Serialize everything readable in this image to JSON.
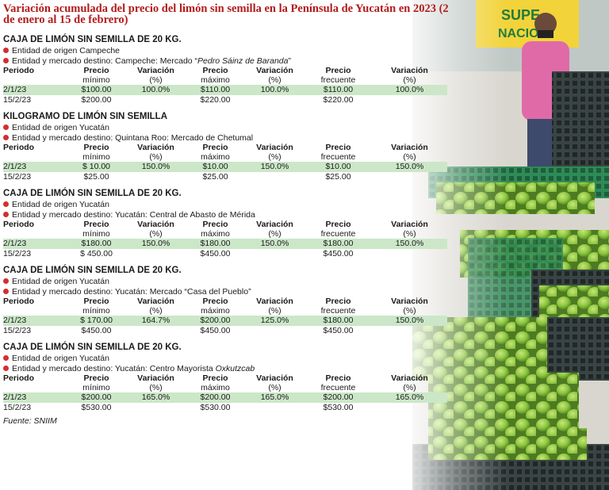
{
  "title": "Variación acumulada del precio del limón sin semilla en la Península de Yucatán en 2023 (2 de enero al 15 de febrero)",
  "headers": {
    "periodo": "Periodo",
    "precio": "Precio",
    "minimo": "mínimo",
    "variacion": "Variación",
    "pct": "(%)",
    "maximo": "máximo",
    "frecuente": "frecuente"
  },
  "sections": [
    {
      "title": "CAJA DE LIMÓN SIN SEMILLA DE 20 KG.",
      "origen": "Entidad de origen Campeche",
      "destino_prefix": "Entidad y mercado destino: Campeche: Mercado “",
      "destino_italic": "Pedro Sáinz de Baranda",
      "destino_suffix": "”",
      "rows": [
        {
          "periodo": "2/1/23",
          "min": "$100.00",
          "var_min": "100.0%",
          "max": "$110.00",
          "var_max": "100.0%",
          "frec": "$110.00",
          "var_frec": "100.0%"
        },
        {
          "periodo": "15/2/23",
          "min": "$200.00",
          "var_min": "",
          "max": "$220.00",
          "var_max": "",
          "frec": "$220.00",
          "var_frec": ""
        }
      ]
    },
    {
      "title": "KILOGRAMO DE LIMÓN SIN SEMILLA",
      "origen": "Entidad de origen Yucatán",
      "destino_prefix": "Entidad y mercado destino: Quintana Roo: Mercado de Chetumal",
      "destino_italic": "",
      "destino_suffix": "",
      "rows": [
        {
          "periodo": "2/1/23",
          "min": "$ 10.00",
          "var_min": "150.0%",
          "max": "$10.00",
          "var_max": "150.0%",
          "frec": "$10.00",
          "var_frec": "150.0%"
        },
        {
          "periodo": "15/2/23",
          "min": "$25.00",
          "var_min": "",
          "max": "$25.00",
          "var_max": "",
          "frec": "$25.00",
          "var_frec": ""
        }
      ]
    },
    {
      "title": "CAJA DE LIMÓN SIN SEMILLA DE 20 KG.",
      "origen": "Entidad de origen Yucatán",
      "destino_prefix": "Entidad y mercado destino: Yucatán: Central de Abasto de Mérida",
      "destino_italic": "",
      "destino_suffix": "",
      "rows": [
        {
          "periodo": "2/1/23",
          "min": "$180.00",
          "var_min": "150.0%",
          "max": "$180.00",
          "var_max": "150.0%",
          "frec": "$180.00",
          "var_frec": "150.0%"
        },
        {
          "periodo": "15/2/23",
          "min": "$ 450.00",
          "var_min": "",
          "max": "$450.00",
          "var_max": "",
          "frec": "$450.00",
          "var_frec": ""
        }
      ]
    },
    {
      "title": "CAJA DE LIMÓN SIN SEMILLA DE 20 KG.",
      "origen": "Entidad de origen Yucatán",
      "destino_prefix": "Entidad y mercado destino: Yucatán: Mercado “Casa del Pueblo”",
      "destino_italic": "",
      "destino_suffix": "",
      "rows": [
        {
          "periodo": "2/1/23",
          "min": "$ 170.00",
          "var_min": "164.7%",
          "max": "$200.00",
          "var_max": "125.0%",
          "frec": "$180.00",
          "var_frec": "150.0%"
        },
        {
          "periodo": "15/2/23",
          "min": "$450.00",
          "var_min": "",
          "max": "$450.00",
          "var_max": "",
          "frec": "$450.00",
          "var_frec": ""
        }
      ]
    },
    {
      "title": "CAJA DE LIMÓN SIN SEMILLA DE 20 KG.",
      "origen": "Entidad de origen Yucatán",
      "destino_prefix": "Entidad y mercado destino: Yucatán: Centro Mayorista ",
      "destino_italic": "Oxkutzcab",
      "destino_suffix": "",
      "rows": [
        {
          "periodo": "2/1/23",
          "min": "$200.00",
          "var_min": "165.0%",
          "max": "$200.00",
          "var_max": "165.0%",
          "frec": "$200.00",
          "var_frec": "165.0%"
        },
        {
          "periodo": "15/2/23",
          "min": "$530.00",
          "var_min": "",
          "max": "$530.00",
          "var_max": "",
          "frec": "$530.00",
          "var_frec": ""
        }
      ]
    }
  ],
  "fuente": "Fuente: SNIIM",
  "photo": {
    "sign_text_1": "SUPE",
    "sign_text_2": "NACION",
    "colors": {
      "lime": "#8cc63f",
      "crate_green": "#2e8b57",
      "crate_dark": "#2f3b3b",
      "shirt": "#e06aa8",
      "bullet": "#d32f2f",
      "title": "#b31b1b",
      "row_highlight": "#cbe7c8"
    }
  }
}
